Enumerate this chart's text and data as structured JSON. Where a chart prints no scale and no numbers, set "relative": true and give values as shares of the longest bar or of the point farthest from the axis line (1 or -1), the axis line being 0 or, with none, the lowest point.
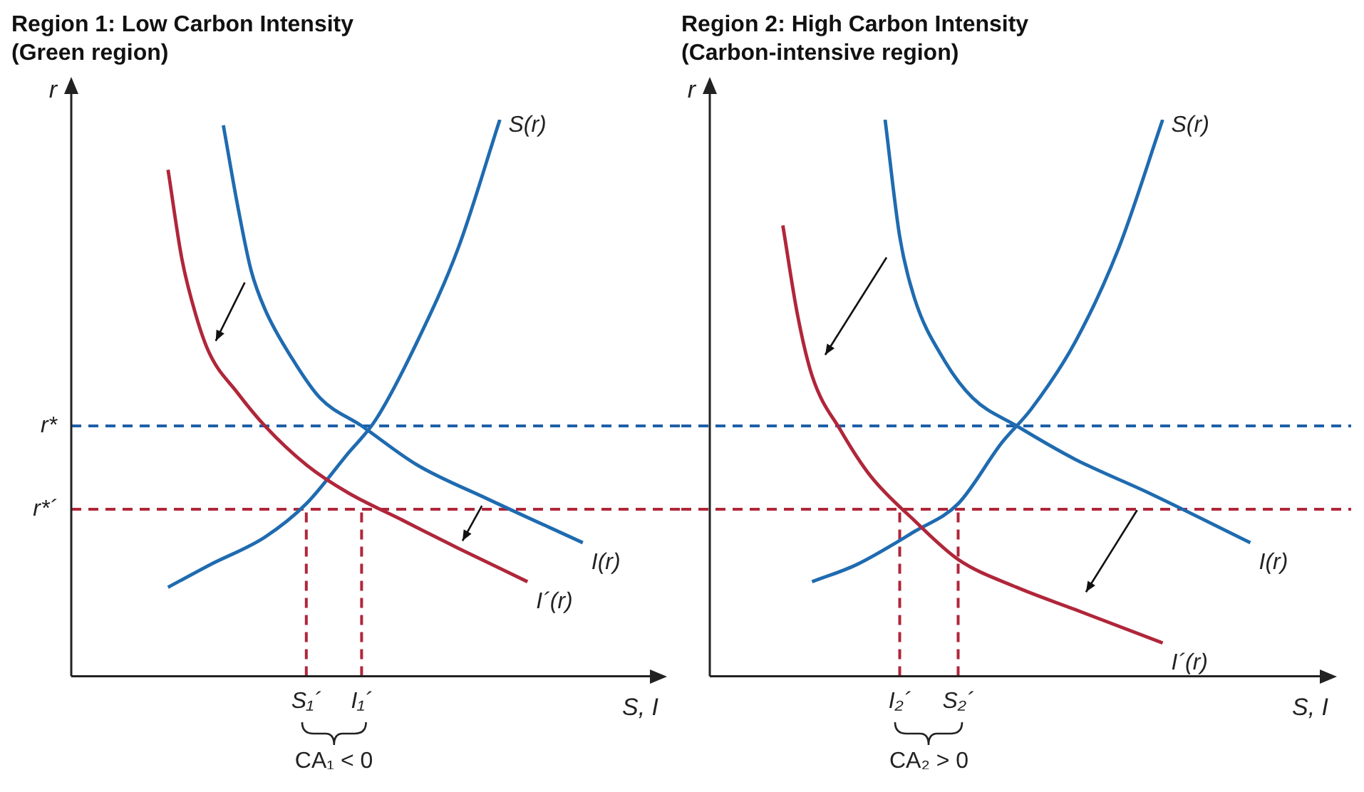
{
  "chart_data": [
    {
      "type": "line",
      "title": "Region 1: Low Carbon Intensity\n(Green region)",
      "xlabel": "S, I",
      "ylabel": "r",
      "relative": true,
      "legend": false,
      "grid": false,
      "marker": "none",
      "line_style": "solid",
      "categories": [
        null,
        null,
        null,
        null,
        null,
        null,
        null,
        null,
        null,
        null,
        null,
        null,
        null,
        null,
        null,
        null,
        null,
        "S₁´",
        null,
        null,
        null,
        "I₁´",
        null,
        null,
        null,
        null,
        null,
        null,
        null,
        null,
        null,
        null,
        null,
        null,
        null,
        null,
        null,
        null,
        null,
        null,
        null
      ],
      "series": [
        {
          "name": "I(r)",
          "color": "#1f6bb0",
          "values": [
            null,
            null,
            null,
            null,
            null,
            null,
            null,
            null,
            null,
            null,
            null,
            0.99,
            0.85,
            0.73,
            0.66,
            null,
            0.57,
            null,
            0.5,
            null,
            null,
            0.45,
            null,
            null,
            null,
            0.38,
            null,
            null,
            null,
            null,
            0.32,
            null,
            null,
            null,
            null,
            null,
            null,
            0.24,
            null,
            null,
            null
          ]
        },
        {
          "name": "I´(r)",
          "color": "#b0263a",
          "values": [
            null,
            null,
            null,
            null,
            null,
            null,
            null,
            0.91,
            0.75,
            0.65,
            0.58,
            null,
            0.51,
            null,
            0.45,
            null,
            null,
            0.38,
            null,
            null,
            0.33,
            null,
            null,
            null,
            0.28,
            null,
            null,
            null,
            0.23,
            null,
            null,
            null,
            null,
            0.17,
            null,
            null,
            null,
            null,
            null,
            null,
            null
          ]
        },
        {
          "name": "S(r)",
          "color": "#1f6bb0",
          "values": [
            null,
            null,
            null,
            null,
            null,
            null,
            null,
            0.16,
            null,
            null,
            0.2,
            null,
            null,
            null,
            0.25,
            null,
            null,
            0.31,
            null,
            null,
            0.4,
            null,
            0.46,
            null,
            null,
            0.6,
            null,
            null,
            0.77,
            null,
            null,
            1,
            null,
            null,
            null,
            null,
            null,
            null,
            null,
            null,
            null
          ]
        }
      ],
      "ref_lines": [
        {
          "axis": "y",
          "value": 0.45,
          "label": "r*",
          "color": "#1f5fa8",
          "line_style": "dashed"
        },
        {
          "axis": "y",
          "value": 0.3,
          "label": "r*´",
          "color": "#b0263a",
          "line_style": "dashed"
        },
        {
          "axis": "x",
          "value": "S₁´",
          "color": "#b0263a",
          "line_style": "dashed"
        },
        {
          "axis": "x",
          "value": "I₁´",
          "color": "#b0263a",
          "line_style": "dashed"
        }
      ],
      "annotations": [
        "CA₁ < 0"
      ]
    },
    {
      "type": "line",
      "title": "Region 2: High Carbon Intensity\n(Carbon-intensive region)",
      "xlabel": "S, I",
      "ylabel": "r",
      "relative": true,
      "legend": false,
      "grid": false,
      "marker": "none",
      "line_style": "solid",
      "categories": [
        null,
        null,
        null,
        null,
        null,
        null,
        null,
        null,
        null,
        null,
        null,
        null,
        null,
        "I₂´",
        null,
        null,
        null,
        "S₂´",
        null,
        null,
        null,
        null,
        null,
        null,
        null,
        null,
        null,
        null,
        null,
        null,
        null,
        null,
        null,
        null,
        null,
        null,
        null,
        null,
        null,
        null,
        null
      ],
      "series": [
        {
          "name": "I(r)",
          "color": "#1f6bb0",
          "values": [
            null,
            null,
            null,
            null,
            null,
            null,
            null,
            null,
            null,
            null,
            null,
            null,
            1,
            0.79,
            0.68,
            null,
            0.57,
            null,
            0.5,
            null,
            null,
            0.45,
            null,
            null,
            null,
            0.39,
            null,
            null,
            null,
            null,
            0.33,
            null,
            null,
            null,
            null,
            null,
            null,
            0.24,
            null,
            null,
            null
          ]
        },
        {
          "name": "I´(r)",
          "color": "#b0263a",
          "values": [
            null,
            null,
            null,
            null,
            null,
            0.81,
            0.65,
            0.54,
            null,
            0.44,
            null,
            0.36,
            null,
            null,
            0.28,
            null,
            null,
            0.21,
            null,
            null,
            null,
            0.16,
            null,
            null,
            null,
            0.12,
            null,
            null,
            null,
            null,
            null,
            0.06,
            null,
            null,
            null,
            null,
            null,
            null,
            null,
            null,
            null
          ]
        },
        {
          "name": "S(r)",
          "color": "#1f6bb0",
          "values": [
            null,
            null,
            null,
            null,
            null,
            null,
            null,
            0.17,
            null,
            null,
            0.2,
            null,
            null,
            null,
            0.26,
            null,
            null,
            0.31,
            null,
            null,
            0.42,
            null,
            0.48,
            null,
            null,
            0.6,
            null,
            null,
            0.77,
            null,
            null,
            1,
            null,
            null,
            null,
            null,
            null,
            null,
            null,
            null,
            null
          ]
        }
      ],
      "ref_lines": [
        {
          "axis": "y",
          "value": 0.45,
          "color": "#1f5fa8",
          "line_style": "dashed"
        },
        {
          "axis": "y",
          "value": 0.3,
          "color": "#b0263a",
          "line_style": "dashed"
        },
        {
          "axis": "x",
          "value": "I₂´",
          "color": "#b0263a",
          "line_style": "dashed"
        },
        {
          "axis": "x",
          "value": "S₂´",
          "color": "#b0263a",
          "line_style": "dashed"
        }
      ],
      "annotations": [
        "CA₂ > 0"
      ]
    }
  ]
}
